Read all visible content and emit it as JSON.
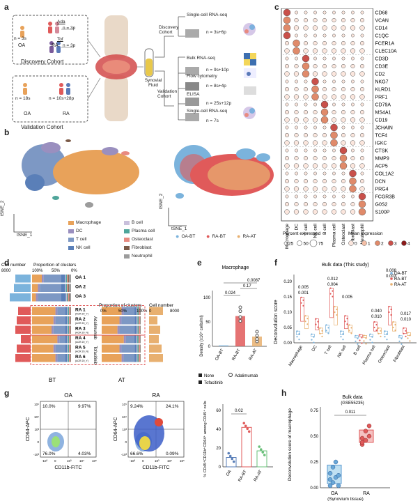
{
  "panels": {
    "a": "a",
    "b": "b",
    "c": "c",
    "d": "d",
    "e": "e",
    "f": "f",
    "g": "g",
    "h": "h"
  },
  "panel_a": {
    "discovery_label": "Discovery Cohort",
    "validation_label": "Validation Cohort",
    "oa": "OA",
    "ra": "RA",
    "n_oa_disc": "n = 3s",
    "n_ada": "n = 3p",
    "n_tof": "n = 3p",
    "ada": "Ada",
    "tof": "Tof",
    "n_oa_val": "n = 18s",
    "n_ra_val": "n = 10s+28p",
    "synovial_fluid": "Synovial Fluid",
    "discovery_cohort": "Discovery Cohort",
    "validation_cohort": "Validation Cohort",
    "methods": [
      {
        "name": "Single-cell RNA-seq",
        "n": "n = 3s+6p"
      },
      {
        "name": "Bulk RNA-seq",
        "n": "n = 9s+10p"
      },
      {
        "name": "Flow cytometry",
        "n": "n = 8s+4p"
      },
      {
        "name": "ELISA",
        "n": "n = 25s+12p"
      },
      {
        "name": "Single-cell RNA-seq",
        "n": "n = 7s"
      }
    ]
  },
  "panel_b": {
    "xlab": "tSNE_1",
    "ylab": "tSNE_2",
    "cell_types": [
      {
        "name": "Macrophage",
        "color": "#e8a25a"
      },
      {
        "name": "DC",
        "color": "#9a8fbf"
      },
      {
        "name": "T cell",
        "color": "#7d98c4"
      },
      {
        "name": "NK cell",
        "color": "#5a7fb8"
      },
      {
        "name": "B cell",
        "color": "#c9c0dc"
      },
      {
        "name": "Plasma cell",
        "color": "#4fa59a"
      },
      {
        "name": "Osteoclast",
        "color": "#e88a80"
      },
      {
        "name": "Fibroblast",
        "color": "#7b5a48"
      },
      {
        "name": "Neutrophil",
        "color": "#9c9c9c"
      }
    ],
    "groups": [
      {
        "name": "OA-BT",
        "color": "#7bb3dc"
      },
      {
        "name": "RA-BT",
        "color": "#e05a5a"
      },
      {
        "name": "RA-AT",
        "color": "#e8b070"
      }
    ]
  },
  "panel_c": {
    "genes": [
      "CD68",
      "VCAN",
      "CD14",
      "C1QC",
      "FCER1A",
      "CLEC10A",
      "CD3D",
      "CD3E",
      "CD2",
      "NKG7",
      "KLRD1",
      "PRF1",
      "CD79A",
      "MS4A1",
      "CD19",
      "JCHAIN",
      "TCF4",
      "IGKC",
      "CTSK",
      "MMP9",
      "ACP5",
      "COL1A2",
      "DCN",
      "PRG4",
      "FCGR3B",
      "G0S2",
      "S100P"
    ],
    "cell_types": [
      "Macrophage",
      "DC",
      "T cell",
      "NK cell",
      "B cell",
      "Plasma cell",
      "Osteoclast",
      "Fibroblast",
      "Neutrophil"
    ],
    "pct_title": "Percent expressed",
    "pct_ticks": [
      "25",
      "50",
      "75"
    ],
    "mean_title": "Mean expression",
    "mean_ticks": [
      "0",
      "1",
      "2",
      "3",
      "4"
    ]
  },
  "panel_d": {
    "left_title": "Cell number",
    "left_tick": "8000",
    "prop_title": "Proportion of clusters",
    "prop_ticks": [
      "100%",
      "50%",
      "0%"
    ],
    "prop_title2": "Proportion of clusters",
    "prop_ticks2": [
      "0%",
      "50%",
      "100%"
    ],
    "right_title": "Cell number",
    "right_ticks": [
      "0",
      "8000"
    ],
    "rows": [
      {
        "label": "OA 1",
        "sub": ""
      },
      {
        "label": "OA 2",
        "sub": ""
      },
      {
        "label": "OA 3",
        "sub": ""
      },
      {
        "label": "RA 1",
        "sub": "(ACR 20_Y)"
      },
      {
        "label": "RA 2",
        "sub": "(ACR 20_Y)"
      },
      {
        "label": "RA 3",
        "sub": "(ACR 20_N)"
      },
      {
        "label": "RA 4",
        "sub": "(ACR 20_Y)"
      },
      {
        "label": "RA 5",
        "sub": "(ACR 20_N)"
      },
      {
        "label": "RA 6",
        "sub": "(ACR 20_Y)"
      }
    ],
    "drug1": "Adalimumab",
    "drug2": "Tofacitinib",
    "bt": "BT",
    "at": "AT"
  },
  "panel_e": {
    "title": "Macrophage",
    "ylabel": "Density (x10⁴ cells/ml)",
    "yticks": [
      "0",
      "50",
      "100"
    ],
    "cats": [
      "OA-BT",
      "RA-BT",
      "RA-AT"
    ],
    "pvals": [
      "0.0087",
      "0.17",
      "0.024"
    ],
    "legend": [
      "None",
      "Adalimumab",
      "Tofacitinib"
    ]
  },
  "panel_f": {
    "title": "Bulk data (This study)",
    "ylabel": "Deconvolution score",
    "yticks": [
      "0.00",
      "0.05",
      "0.10",
      "0.15",
      "0.20"
    ],
    "cats": [
      "Macrophage",
      "DC",
      "T cell",
      "NK cell",
      "B cell",
      "Plasma cell",
      "Osteoclast",
      "Fibroblast"
    ],
    "legend": [
      "OA-BT",
      "RA-BT",
      "RA-AT"
    ],
    "pvals": [
      {
        "top": "0.005",
        "bot": "0.001"
      },
      {
        "top": "0.012",
        "bot": "0.004"
      },
      {
        "top": "0.005",
        "bot": ""
      },
      {
        "top": "0.040",
        "bot": "0.010"
      },
      {
        "top": "0.008",
        "bot": "0.003"
      },
      {
        "top": "0.017",
        "bot": "0.010"
      }
    ]
  },
  "panel_g": {
    "oa_title": "OA",
    "ra_title": "RA",
    "xlabel": "CD11b-FITC",
    "ylabel": "CD64-APC",
    "oa_q": [
      "10.0%",
      "9.97%",
      "76.0%",
      "4.03%"
    ],
    "ra_q": [
      "9.24%",
      "24.1%",
      "66.6%",
      "0.09%"
    ],
    "bar_ylabel": "% CD45⁺CD11b⁺CD64⁺ among CD45⁺ cells",
    "bar_yticks": [
      "0",
      "20",
      "40",
      "60"
    ],
    "bar_cats": [
      "OA",
      "RA-BT",
      "RA-AT"
    ],
    "pval": "0.02",
    "axis_ticks_y": [
      "10⁵",
      "10⁴",
      "10³",
      "0",
      "-10³"
    ],
    "axis_ticks_x": [
      "-10³",
      "0",
      "10³",
      "10⁴",
      "10⁵"
    ]
  },
  "panel_h": {
    "title": "Bulk data",
    "subtitle": "(GSE55235)",
    "ylabel": "Deconvolution score of macrophage",
    "yticks": [
      "0.00",
      "0.25",
      "0.50",
      "0.75"
    ],
    "cats": [
      "OA",
      "RA"
    ],
    "xnote": "(Synovium tissue)",
    "pval": "0.011"
  }
}
